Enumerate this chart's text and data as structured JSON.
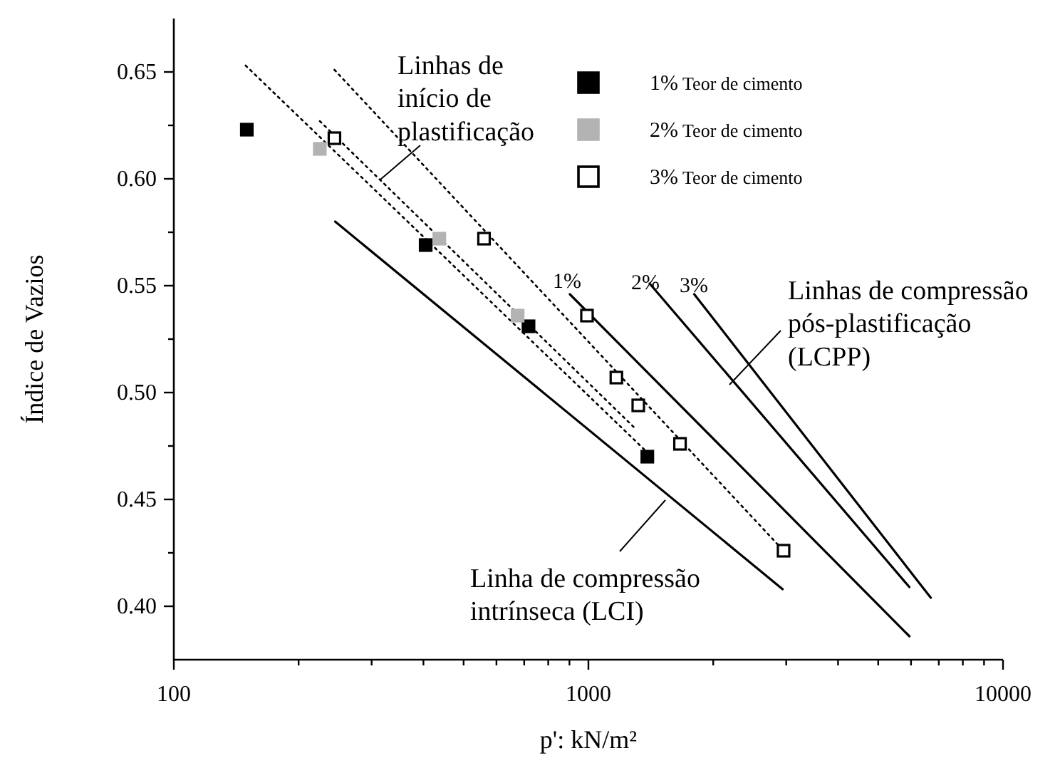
{
  "chart_data": {
    "type": "scatter",
    "xlabel": "p': kN/m²",
    "ylabel": "Índice de Vazios",
    "log": "x",
    "xlim": [
      100,
      10000
    ],
    "ylim": [
      0.375,
      0.675
    ],
    "xticks": [
      100,
      {
        "value": 200,
        "label": null
      },
      {
        "value": 300,
        "label": null
      },
      {
        "value": 400,
        "label": null
      },
      {
        "value": 500,
        "label": null
      },
      {
        "value": 600,
        "label": null
      },
      {
        "value": 700,
        "label": null
      },
      {
        "value": 800,
        "label": null
      },
      {
        "value": 900,
        "label": null
      },
      1000,
      {
        "value": 2000,
        "label": null
      },
      {
        "value": 3000,
        "label": null
      },
      {
        "value": 4000,
        "label": null
      },
      {
        "value": 5000,
        "label": null
      },
      {
        "value": 6000,
        "label": null
      },
      {
        "value": 7000,
        "label": null
      },
      {
        "value": 8000,
        "label": null
      },
      {
        "value": 9000,
        "label": null
      },
      10000
    ],
    "yticks": [
      {
        "value": 0.4,
        "label": "0.40"
      },
      {
        "value": 0.425,
        "label": null
      },
      {
        "value": 0.45,
        "label": "0.45"
      },
      {
        "value": 0.475,
        "label": null
      },
      {
        "value": 0.5,
        "label": "0.50"
      },
      {
        "value": 0.525,
        "label": null
      },
      {
        "value": 0.55,
        "label": "0.55"
      },
      {
        "value": 0.575,
        "label": null
      },
      {
        "value": 0.6,
        "label": "0.60"
      },
      {
        "value": 0.625,
        "label": null
      },
      {
        "value": 0.65,
        "label": "0.65"
      }
    ],
    "grid": false,
    "legend": "top right",
    "marker": "square",
    "series": [
      {
        "name": "1% Teor de cimento",
        "color": "#000000",
        "x": [
          150,
          405,
          717,
          1387
        ],
        "values": [
          0.623,
          0.569,
          0.531,
          0.47
        ]
      },
      {
        "name": "2% Teor de cimento",
        "color": "#b3b3b3",
        "x": [
          225,
          437,
          675
        ],
        "values": [
          0.614,
          0.572,
          0.536
        ]
      },
      {
        "name": "3% Teor de cimento",
        "color": "#ffffff",
        "x": [
          244,
          560,
          992,
          1168,
          1319,
          1663,
          2956
        ],
        "values": [
          0.619,
          0.572,
          0.536,
          0.507,
          0.494,
          0.476,
          0.426
        ]
      },
      {
        "type": "line",
        "color": "#000000",
        "line_style": "dotted",
        "marker": "none",
        "x": [
          149,
          1387
        ],
        "values": [
          0.653,
          0.472
        ]
      },
      {
        "type": "line",
        "color": "#000000",
        "line_style": "dotted",
        "marker": "none",
        "x": [
          225,
          1300
        ],
        "values": [
          0.627,
          0.483
        ]
      },
      {
        "type": "line",
        "color": "#000000",
        "line_style": "dotted",
        "marker": "none",
        "x": [
          244,
          2956
        ],
        "values": [
          0.651,
          0.426
        ]
      },
      {
        "type": "line",
        "color": "#000000",
        "line_style": "solid",
        "marker": "none",
        "x": [
          245,
          2940
        ],
        "values": [
          0.58,
          0.408
        ]
      },
      {
        "type": "line",
        "color": "#000000",
        "line_style": "solid",
        "marker": "none",
        "x": [
          902,
          5945
        ],
        "values": [
          0.546,
          0.386
        ]
      },
      {
        "type": "line",
        "color": "#000000",
        "line_style": "solid",
        "marker": "none",
        "x": [
          1405,
          5945
        ],
        "values": [
          0.551,
          0.409
        ]
      },
      {
        "type": "line",
        "color": "#000000",
        "line_style": "solid",
        "marker": "none",
        "x": [
          1800,
          6695
        ],
        "values": [
          0.546,
          0.404
        ]
      }
    ],
    "annotations": [
      "Linhas de\ninício de\nplastificação",
      "Linhas de compressão\npós-plastificação\n(LCPP)",
      "Linha de compressão\nintrínseca (LCI)",
      "1%",
      "2%",
      "3%"
    ]
  }
}
